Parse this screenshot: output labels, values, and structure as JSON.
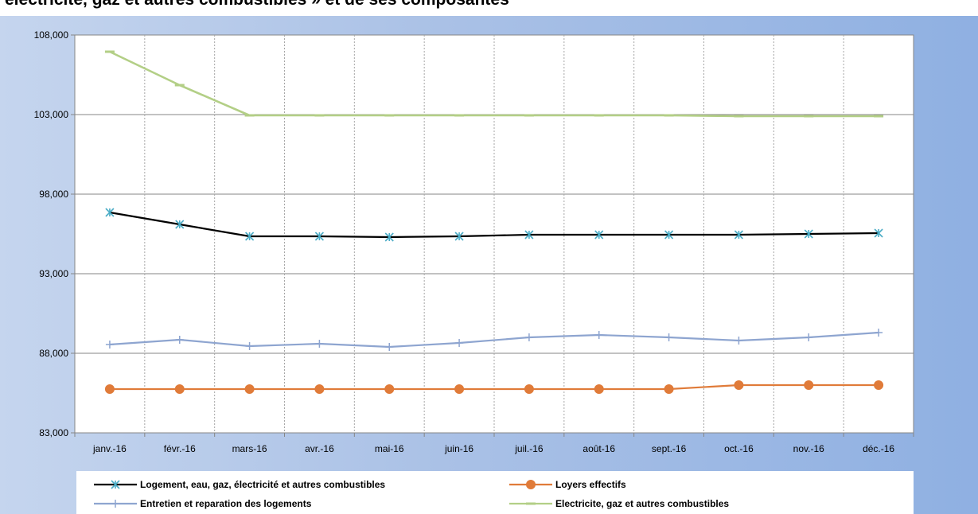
{
  "title": "électricité, gaz et autres combustibles » et de ses composantes",
  "chart_data": {
    "type": "line",
    "categories": [
      "janv.-16",
      "févr.-16",
      "mars-16",
      "avr.-16",
      "mai-16",
      "juin-16",
      "juil.-16",
      "août-16",
      "sept.-16",
      "oct.-16",
      "nov.-16",
      "déc.-16"
    ],
    "ylim": [
      83000,
      108000
    ],
    "yticks": [
      83000,
      88000,
      93000,
      98000,
      103000,
      108000
    ],
    "ytick_labels": [
      "83,000",
      "88,000",
      "93,000",
      "98,000",
      "103,000",
      "108,000"
    ],
    "grid": true,
    "legend_position": "bottom",
    "series": [
      {
        "name": "Logement, eau, gaz, électricité et autres combustibles",
        "color": "#000000",
        "marker_color": "#4bacc6",
        "marker": "asterisk",
        "values": [
          96850,
          96100,
          95350,
          95350,
          95300,
          95350,
          95450,
          95450,
          95450,
          95450,
          95500,
          95550
        ]
      },
      {
        "name": "Loyers effectifs",
        "color": "#e07b39",
        "marker_color": "#e07b39",
        "marker": "circle",
        "values": [
          85750,
          85750,
          85750,
          85750,
          85750,
          85750,
          85750,
          85750,
          85750,
          86000,
          86000,
          86000
        ]
      },
      {
        "name": "Entretien et reparation des logements",
        "color": "#8ea5d0",
        "marker_color": "#8ea5d0",
        "marker": "plus",
        "values": [
          88550,
          88850,
          88450,
          88600,
          88400,
          88650,
          89000,
          89150,
          89000,
          88800,
          89000,
          89300
        ]
      },
      {
        "name": "Electricite, gaz et autres combustibles",
        "color": "#b3cf86",
        "marker_color": "#b3cf86",
        "marker": "dash",
        "values": [
          106950,
          104850,
          102950,
          102950,
          102950,
          102950,
          102950,
          102950,
          102950,
          102900,
          102900,
          102900
        ]
      }
    ]
  }
}
